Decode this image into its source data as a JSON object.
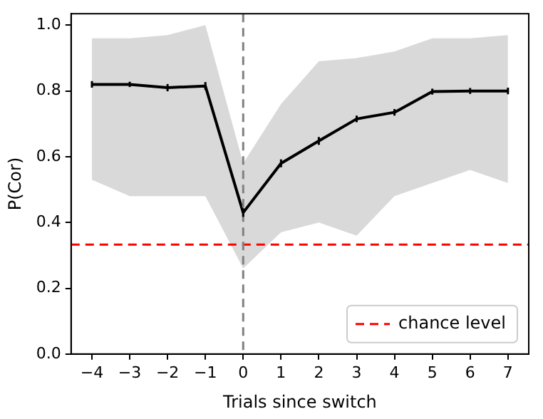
{
  "chart_data": {
    "type": "line",
    "xlabel": "Trials since switch",
    "ylabel": "P(Cor)",
    "x": [
      -4,
      -3,
      -2,
      -1,
      0,
      1,
      2,
      3,
      4,
      5,
      6,
      7
    ],
    "series": [
      {
        "color": "#000000",
        "values": [
          0.82,
          0.82,
          0.81,
          0.815,
          0.43,
          0.58,
          0.648,
          0.715,
          0.735,
          0.798,
          0.8,
          0.8
        ],
        "errors": [
          0.01,
          0.008,
          0.011,
          0.012,
          0.013,
          0.012,
          0.012,
          0.01,
          0.01,
          0.009,
          0.009,
          0.01
        ],
        "lower": [
          0.53,
          0.48,
          0.48,
          0.48,
          0.26,
          0.37,
          0.4,
          0.36,
          0.48,
          0.52,
          0.56,
          0.52
        ],
        "upper": [
          0.96,
          0.96,
          0.97,
          1.0,
          0.58,
          0.76,
          0.89,
          0.9,
          0.92,
          0.96,
          0.96,
          0.97
        ]
      }
    ],
    "xlim": [
      -4.55,
      7.55
    ],
    "xticks": [
      {
        "value": -4,
        "label": "−4"
      },
      {
        "value": -3,
        "label": "−3"
      },
      {
        "value": -2,
        "label": "−2"
      },
      {
        "value": -1,
        "label": "−1"
      },
      0,
      1,
      2,
      3,
      4,
      5,
      6,
      7
    ],
    "ylim": [
      0,
      1.035
    ],
    "yticks": [
      {
        "value": 0,
        "label": "0.0"
      },
      {
        "value": 0.2,
        "label": "0.2"
      },
      {
        "value": 0.4,
        "label": "0.4"
      },
      {
        "value": 0.6,
        "label": "0.6"
      },
      {
        "value": 0.8,
        "label": "0.8"
      },
      {
        "value": 1,
        "label": "1.0"
      }
    ],
    "ref_lines": [
      {
        "axis": "y",
        "value": 0.333,
        "label": "chance level",
        "color": "#ff0000",
        "line_style": "dashed"
      },
      {
        "axis": "x",
        "value": 0,
        "color": "#808080",
        "line_style": "dashed"
      }
    ],
    "legend": "bottom right",
    "marker": "none",
    "grid": false
  }
}
